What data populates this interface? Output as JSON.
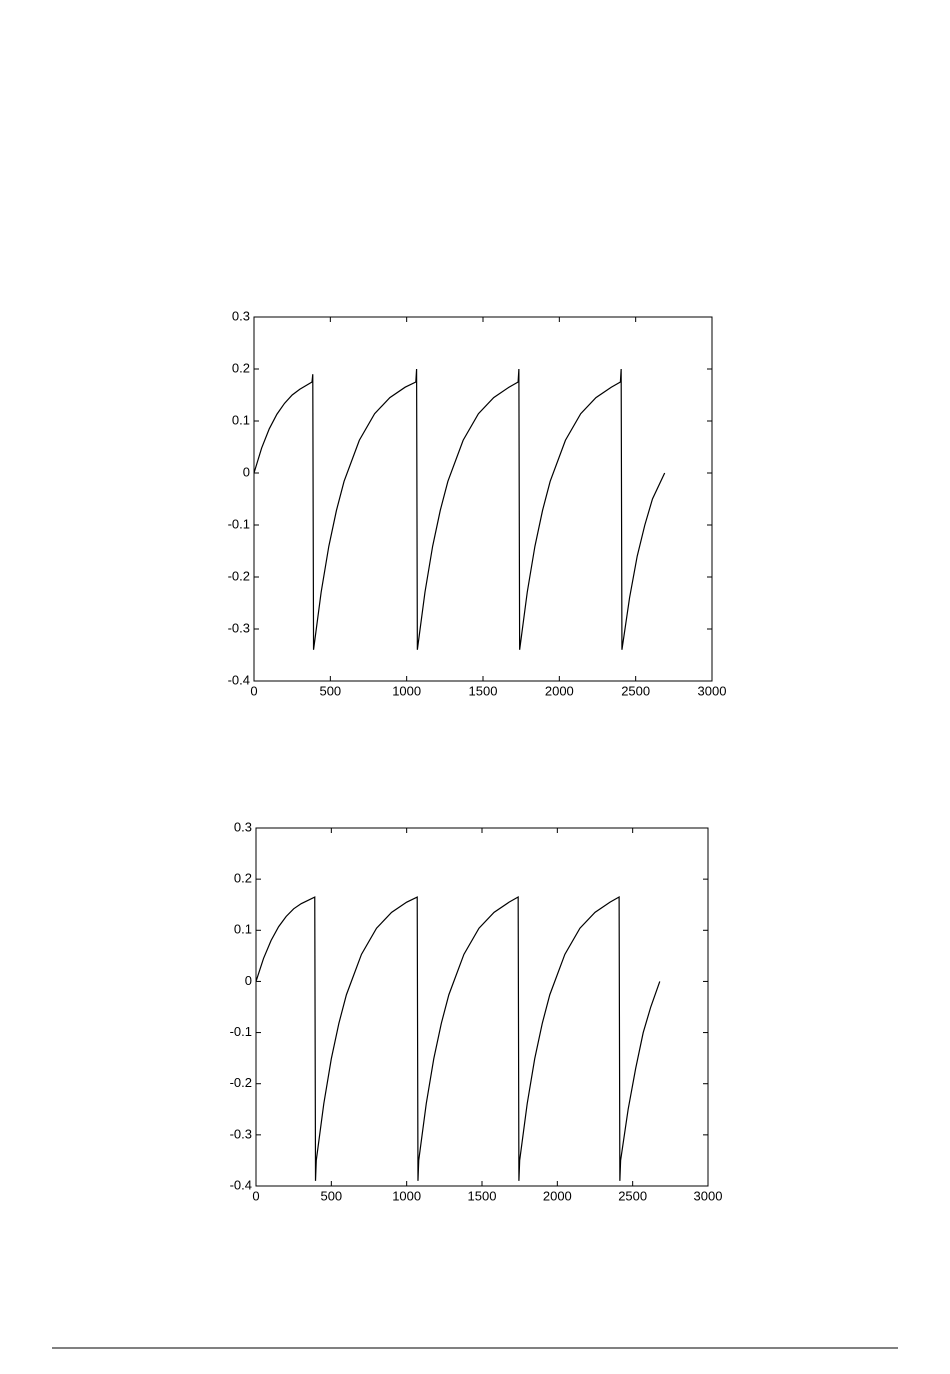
{
  "chart_data": [
    {
      "type": "line",
      "color": "#000000",
      "x": [
        0,
        50,
        100,
        150,
        200,
        250,
        300,
        380,
        385,
        390,
        440,
        490,
        540,
        590,
        690,
        790,
        890,
        990,
        1060,
        1065,
        1070,
        1120,
        1170,
        1220,
        1270,
        1370,
        1470,
        1570,
        1670,
        1730,
        1735,
        1740,
        1790,
        1840,
        1890,
        1940,
        2040,
        2140,
        2240,
        2340,
        2400,
        2405,
        2410,
        2460,
        2510,
        2560,
        2610,
        2690
      ],
      "values": [
        0,
        0.048,
        0.085,
        0.113,
        0.134,
        0.15,
        0.161,
        0.175,
        0.19,
        -0.34,
        -0.229,
        -0.141,
        -0.072,
        -0.016,
        0.063,
        0.114,
        0.145,
        0.165,
        0.175,
        0.2,
        -0.34,
        -0.229,
        -0.141,
        -0.072,
        -0.016,
        0.063,
        0.114,
        0.145,
        0.165,
        0.175,
        0.2,
        -0.34,
        -0.229,
        -0.141,
        -0.072,
        -0.016,
        0.063,
        0.114,
        0.145,
        0.165,
        0.175,
        0.2,
        -0.34,
        -0.24,
        -0.16,
        -0.1,
        -0.05,
        0
      ],
      "xlim": [
        0,
        3000
      ],
      "xticks": [
        0,
        500,
        1000,
        1500,
        2000,
        2500,
        3000
      ],
      "ylim": [
        -0.4,
        0.3
      ],
      "yticks": [
        -0.4,
        -0.3,
        -0.2,
        -0.1,
        0,
        0.1,
        0.2,
        0.3
      ]
    },
    {
      "type": "line",
      "color": "#000000",
      "x": [
        0,
        50,
        100,
        150,
        200,
        250,
        300,
        390,
        395,
        400,
        450,
        500,
        550,
        600,
        700,
        800,
        900,
        1000,
        1070,
        1075,
        1080,
        1130,
        1180,
        1230,
        1280,
        1380,
        1480,
        1580,
        1680,
        1740,
        1745,
        1750,
        1800,
        1850,
        1900,
        1950,
        2050,
        2150,
        2250,
        2350,
        2410,
        2415,
        2420,
        2470,
        2520,
        2570,
        2620,
        2680
      ],
      "values": [
        0,
        0.045,
        0.08,
        0.107,
        0.127,
        0.142,
        0.152,
        0.165,
        -0.39,
        -0.35,
        -0.239,
        -0.151,
        -0.082,
        -0.026,
        0.053,
        0.104,
        0.135,
        0.155,
        0.165,
        -0.39,
        -0.35,
        -0.239,
        -0.151,
        -0.082,
        -0.026,
        0.053,
        0.104,
        0.135,
        0.155,
        0.165,
        -0.39,
        -0.35,
        -0.239,
        -0.151,
        -0.082,
        -0.026,
        0.053,
        0.104,
        0.135,
        0.155,
        0.165,
        -0.39,
        -0.35,
        -0.25,
        -0.17,
        -0.1,
        -0.05,
        0
      ],
      "xlim": [
        0,
        3000
      ],
      "xticks": [
        0,
        500,
        1000,
        1500,
        2000,
        2500,
        3000
      ],
      "ylim": [
        -0.4,
        0.3
      ],
      "yticks": [
        -0.4,
        -0.3,
        -0.2,
        -0.1,
        0,
        0.1,
        0.2,
        0.3
      ]
    }
  ]
}
